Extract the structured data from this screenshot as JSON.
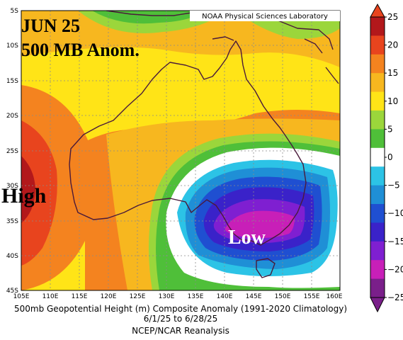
{
  "header": {
    "credit": "NOAA Physical Sciences Laboratory",
    "title_line1": "JUN 25",
    "title_line2": "500 MB Anom."
  },
  "map": {
    "high_label": "High",
    "low_label": "Low",
    "lat_labels": [
      "5S",
      "10S",
      "15S",
      "20S",
      "25S",
      "30S",
      "35S",
      "40S",
      "45S"
    ],
    "lon_labels": [
      "105E",
      "110E",
      "115E",
      "120E",
      "125E",
      "130E",
      "135E",
      "140E",
      "145E",
      "150E",
      "155E",
      "160E"
    ]
  },
  "colorbar": {
    "levels": [
      25,
      20,
      15,
      10,
      5,
      0,
      -5,
      -10,
      -15,
      -20,
      -25
    ],
    "labels": [
      "25",
      "20",
      "15",
      "10",
      "5",
      "0",
      "−5",
      "−10",
      "−15",
      "−20",
      "−25"
    ],
    "colors": [
      "#b2181b",
      "#e8441e",
      "#f4831f",
      "#f7b71f",
      "#ffe417",
      "#9bd63b",
      "#4fbf39",
      "#ffffff",
      "#2cc3e6",
      "#1f8fd6",
      "#1f4fd1",
      "#3a22c9",
      "#7f1fd1",
      "#c81fb8",
      "#7a1f8a"
    ]
  },
  "footer": {
    "line1": "500mb Geopotential Height (m) Composite Anomaly (1991-2020 Climatology)",
    "line2": "6/1/25  to 6/28/25",
    "line3": "NCEP/NCAR Reanalysis"
  }
}
